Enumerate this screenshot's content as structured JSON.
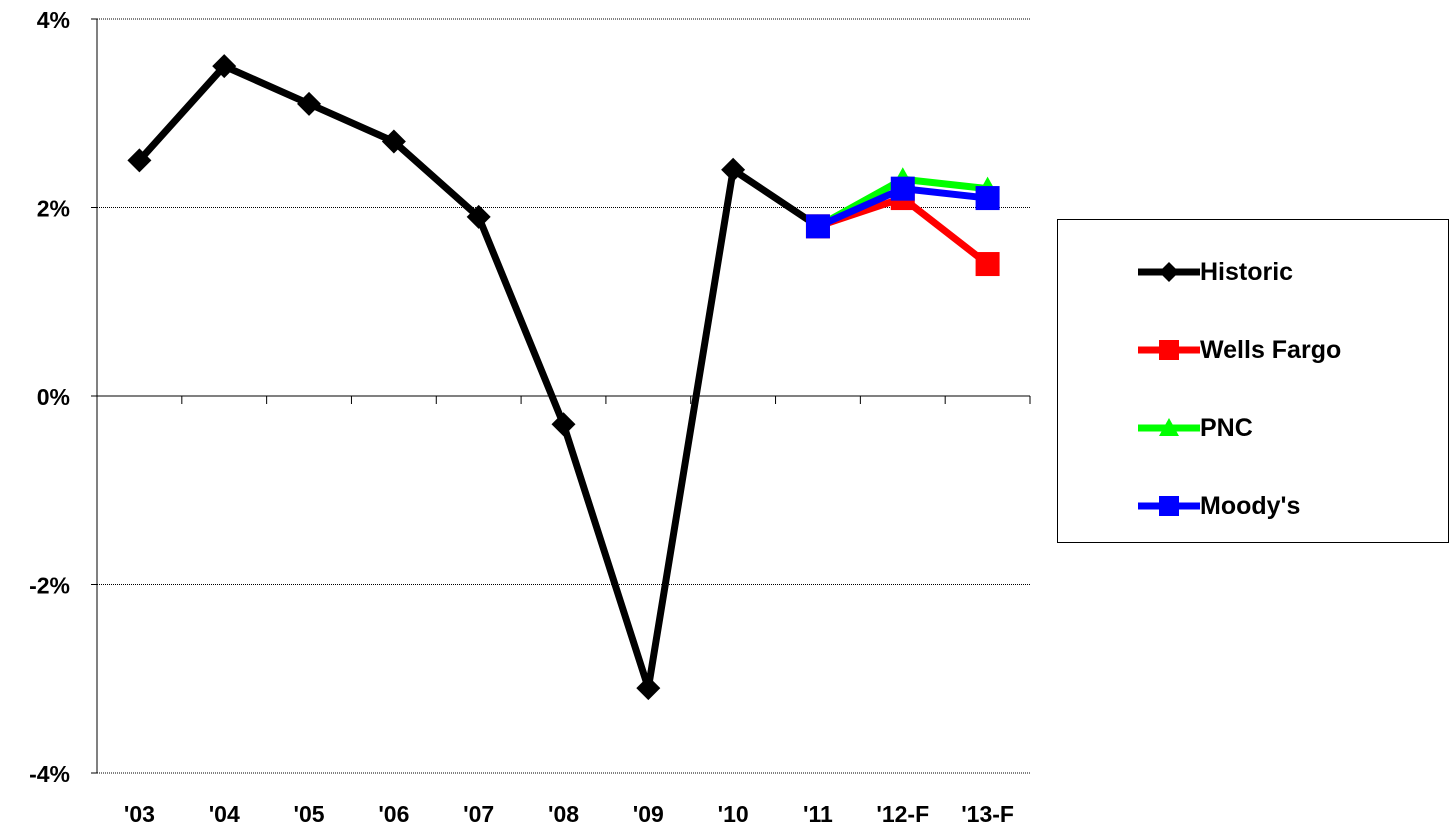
{
  "chart_data": {
    "type": "line",
    "categories": [
      "'03",
      "'04",
      "'05",
      "'06",
      "'07",
      "'08",
      "'09",
      "'10",
      "'11",
      "'12-F",
      "'13-F"
    ],
    "yticks": [
      "4%",
      "2%",
      "0%",
      "-2%",
      "-4%"
    ],
    "ylim": [
      -4,
      4
    ],
    "ystep": 2,
    "grid": true,
    "legend": "right",
    "series": [
      {
        "name": "Historic",
        "color": "#000000",
        "marker": "diamond",
        "values": [
          2.5,
          3.5,
          3.1,
          2.7,
          1.9,
          -0.3,
          -3.1,
          2.4,
          1.8,
          null,
          null
        ]
      },
      {
        "name": "Wells Fargo",
        "color": "#ff0000",
        "marker": "square",
        "values": [
          null,
          null,
          null,
          null,
          null,
          null,
          null,
          null,
          1.8,
          2.1,
          1.4
        ]
      },
      {
        "name": "PNC",
        "color": "#00ff00",
        "marker": "triangle",
        "values": [
          null,
          null,
          null,
          null,
          null,
          null,
          null,
          null,
          1.8,
          2.3,
          2.2
        ]
      },
      {
        "name": "Moody's",
        "color": "#0000ff",
        "marker": "square",
        "values": [
          null,
          null,
          null,
          null,
          null,
          null,
          null,
          null,
          1.8,
          2.2,
          2.1
        ]
      }
    ]
  }
}
